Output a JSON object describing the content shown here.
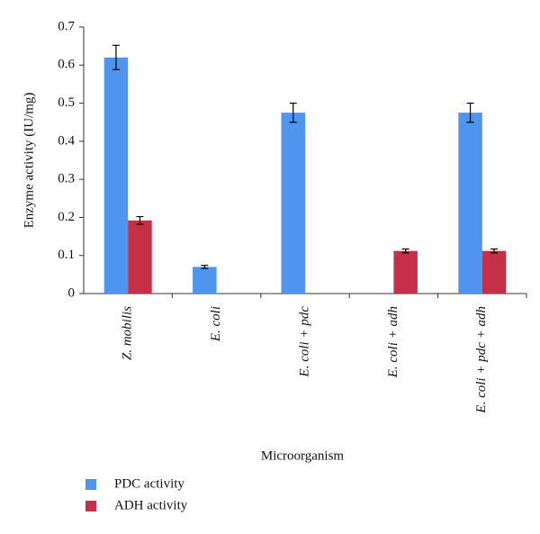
{
  "chart_data": {
    "type": "bar",
    "y_label": "Enzyme activity (IU/mg)",
    "x_label": "Microorganism",
    "categories": [
      "Z. mobilis",
      "E. coli",
      "E. coli + pdc",
      "E. coli + adh",
      "E. coli + pdc + adh"
    ],
    "series": [
      {
        "name": "PDC activity",
        "color": "#4f94ee",
        "values": [
          0.62,
          0.07,
          0.475,
          0,
          0.475
        ],
        "errors": [
          0.032,
          0.004,
          0.025,
          null,
          0.025
        ]
      },
      {
        "name": "ADH activity",
        "color": "#c53048",
        "values": [
          0.192,
          0,
          0,
          0.112,
          0.112
        ],
        "errors": [
          0.01,
          null,
          null,
          0.005,
          0.005
        ]
      }
    ],
    "ylim": [
      0,
      0.7
    ],
    "yticks": [
      0,
      0.1,
      0.2,
      0.3,
      0.4,
      0.5,
      0.6,
      0.7
    ],
    "grid": false,
    "legend": "bottom-left"
  }
}
